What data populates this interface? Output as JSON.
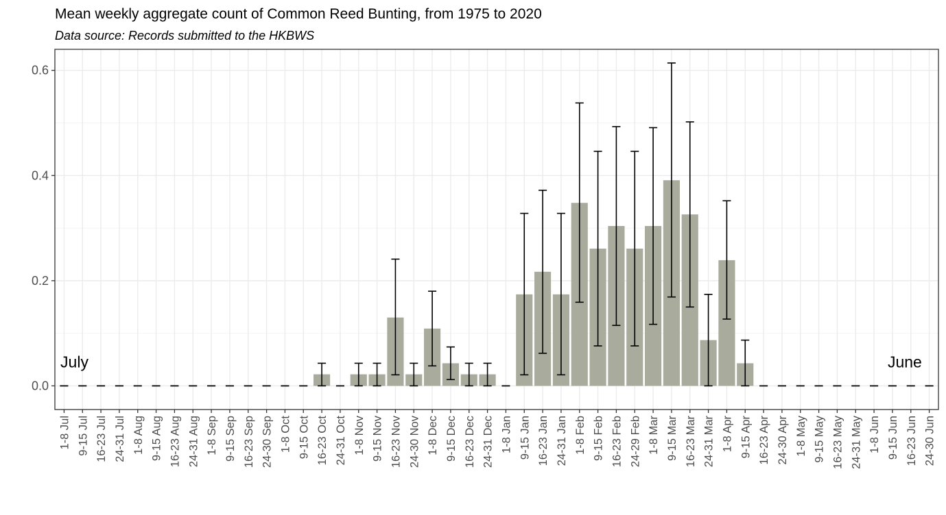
{
  "chart_data": {
    "type": "bar",
    "title": "Mean weekly aggregate count of Common Reed Bunting, from 1975 to 2020",
    "subtitle": "Data source: Records submitted to the HKBWS",
    "xlabel": "",
    "ylabel": "",
    "ylim": [
      -0.045,
      0.64
    ],
    "yticks": [
      0.0,
      0.2,
      0.4,
      0.6
    ],
    "ytick_labels": [
      "0.0",
      "0.2",
      "0.4",
      "0.6"
    ],
    "grid": true,
    "colors": {
      "bar": "#a9ab9c",
      "grid_major": "#ebebeb",
      "grid_minor": "#f4f4f4",
      "border": "#333333",
      "error_bar": "#000000"
    },
    "annotations": [
      {
        "text": "July",
        "x": "1-8 Jul",
        "y": 0.035
      },
      {
        "text": "June",
        "x": "24-30 Jun",
        "y": 0.035
      }
    ],
    "categories": [
      "1-8 Jul",
      "9-15 Jul",
      "16-23 Jul",
      "24-31 Jul",
      "1-8 Aug",
      "9-15 Aug",
      "16-23 Aug",
      "24-31 Aug",
      "1-8 Sep",
      "9-15 Sep",
      "16-23 Sep",
      "24-30 Sep",
      "1-8 Oct",
      "9-15 Oct",
      "16-23 Oct",
      "24-31 Oct",
      "1-8 Nov",
      "9-15 Nov",
      "16-23 Nov",
      "24-30 Nov",
      "1-8 Dec",
      "9-15 Dec",
      "16-23 Dec",
      "24-31 Dec",
      "1-8 Jan",
      "9-15 Jan",
      "16-23 Jan",
      "24-31 Jan",
      "1-8 Feb",
      "9-15 Feb",
      "16-23 Feb",
      "24-29 Feb",
      "1-8 Mar",
      "9-15 Mar",
      "16-23 Mar",
      "24-31 Mar",
      "1-8 Apr",
      "9-15 Apr",
      "16-23 Apr",
      "24-30 Apr",
      "1-8 May",
      "9-15 May",
      "16-23 May",
      "24-31 May",
      "1-8 Jun",
      "9-15 Jun",
      "16-23 Jun",
      "24-30 Jun"
    ],
    "values": [
      0,
      0,
      0,
      0,
      0,
      0,
      0,
      0,
      0,
      0,
      0,
      0,
      0,
      0,
      0.022,
      0,
      0.022,
      0.022,
      0.13,
      0.022,
      0.109,
      0.043,
      0.022,
      0.022,
      0,
      0.174,
      0.217,
      0.174,
      0.348,
      0.261,
      0.304,
      0.261,
      0.304,
      0.391,
      0.326,
      0.087,
      0.239,
      0.043,
      0,
      0,
      0,
      0,
      0,
      0,
      0,
      0,
      0,
      0
    ],
    "error_low": [
      0,
      0,
      0,
      0,
      0,
      0,
      0,
      0,
      0,
      0,
      0,
      0,
      0,
      0,
      0,
      0,
      0,
      0,
      0.021,
      0,
      0.038,
      0.012,
      0,
      0,
      0,
      0.021,
      0.062,
      0.021,
      0.159,
      0.076,
      0.115,
      0.076,
      0.117,
      0.169,
      0.15,
      0,
      0.127,
      0,
      0,
      0,
      0,
      0,
      0,
      0,
      0,
      0,
      0,
      0
    ],
    "error_high": [
      0,
      0,
      0,
      0,
      0,
      0,
      0,
      0,
      0,
      0,
      0,
      0,
      0,
      0,
      0.043,
      0,
      0.043,
      0.043,
      0.241,
      0.043,
      0.18,
      0.074,
      0.043,
      0.043,
      0,
      0.328,
      0.372,
      0.328,
      0.538,
      0.446,
      0.493,
      0.446,
      0.491,
      0.614,
      0.502,
      0.174,
      0.352,
      0.087,
      0,
      0,
      0,
      0,
      0,
      0,
      0,
      0,
      0,
      0
    ]
  }
}
